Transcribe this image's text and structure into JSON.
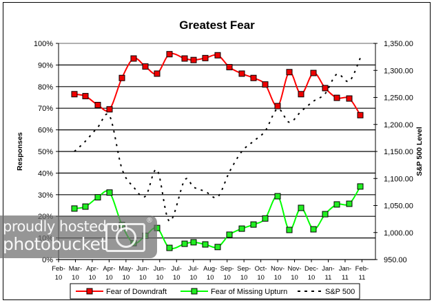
{
  "chart_data": {
    "type": "line",
    "title": "Greatest Fear",
    "xlabel": "",
    "ylabel": "Responses",
    "y2label": "S&P 500 Level",
    "ylim": [
      0,
      100
    ],
    "y2lim": [
      950,
      1350
    ],
    "y_ticks": [
      "0%",
      "10%",
      "20%",
      "30%",
      "40%",
      "50%",
      "60%",
      "70%",
      "80%",
      "90%",
      "100%"
    ],
    "y2_ticks": [
      "950.00",
      "1,000.00",
      "1,050.00",
      "1,100.00",
      "1,150.00",
      "1,200.00",
      "1,250.00",
      "1,300.00",
      "1,350.00"
    ],
    "x_tick_labels": [
      [
        "Feb-",
        "10"
      ],
      [
        "Mar-",
        "10"
      ],
      [
        "Apr-",
        "10"
      ],
      [
        "Apr-",
        "10"
      ],
      [
        "May-",
        "10"
      ],
      [
        "Jun-",
        "10"
      ],
      [
        "Jun-",
        "10"
      ],
      [
        "Jul-",
        "10"
      ],
      [
        "Jul-",
        "10"
      ],
      [
        "Aug-",
        "10"
      ],
      [
        "Sep-",
        "10"
      ],
      [
        "Sep-",
        "10"
      ],
      [
        "Oct-",
        "10"
      ],
      [
        "Nov-",
        "10"
      ],
      [
        "Nov-",
        "10"
      ],
      [
        "Dec-",
        "10"
      ],
      [
        "Jan-",
        "11"
      ],
      [
        "Jan-",
        "11"
      ],
      [
        "Feb-",
        "11"
      ]
    ],
    "grid": true,
    "legend_position": "bottom",
    "x_positions": [
      108,
      124,
      142,
      159,
      177,
      194,
      211,
      228,
      246,
      268,
      281,
      298,
      316,
      333,
      351,
      368,
      385,
      403,
      420,
      437,
      455,
      472,
      489,
      507,
      523
    ],
    "series": [
      {
        "name": "Fear of Downdraft",
        "axis": "left",
        "color": "#ff0000",
        "marker_color": "#ee0000",
        "values": [
          76.5,
          75.6,
          71.5,
          69.5,
          84.0,
          93.0,
          89.3,
          86.0,
          95.0,
          93.0,
          92.3,
          93.2,
          94.5,
          89.0,
          86.0,
          84.0,
          81.0,
          71.0,
          86.7,
          76.5,
          86.3,
          79.3,
          74.8,
          74.5,
          66.8
        ]
      },
      {
        "name": "Fear of Missing Upturn",
        "axis": "left",
        "color": "#00ff00",
        "marker_color": "#22ee22",
        "values": [
          23.6,
          24.5,
          28.8,
          31.0,
          16.0,
          7.6,
          11.0,
          14.6,
          5.4,
          7.3,
          8.0,
          7.0,
          5.8,
          11.5,
          14.3,
          16.2,
          19.0,
          29.3,
          13.7,
          23.9,
          14.0,
          21.0,
          25.5,
          25.8,
          33.8
        ]
      },
      {
        "name": "S&P 500",
        "axis": "right",
        "color": "#000000",
        "dashed": true,
        "values": [
          1150,
          1169,
          1195,
          1216,
          1118,
          1084,
          1067,
          1116,
          1021,
          1097,
          1084,
          1076,
          1066,
          1112,
          1150,
          1169,
          1188,
          1229,
          1204,
          1224,
          1243,
          1257,
          1293,
          1280,
          1323
        ]
      }
    ]
  },
  "watermark": {
    "line1": "proudly hosted on",
    "line2": "photobucket",
    "reg": "®"
  }
}
